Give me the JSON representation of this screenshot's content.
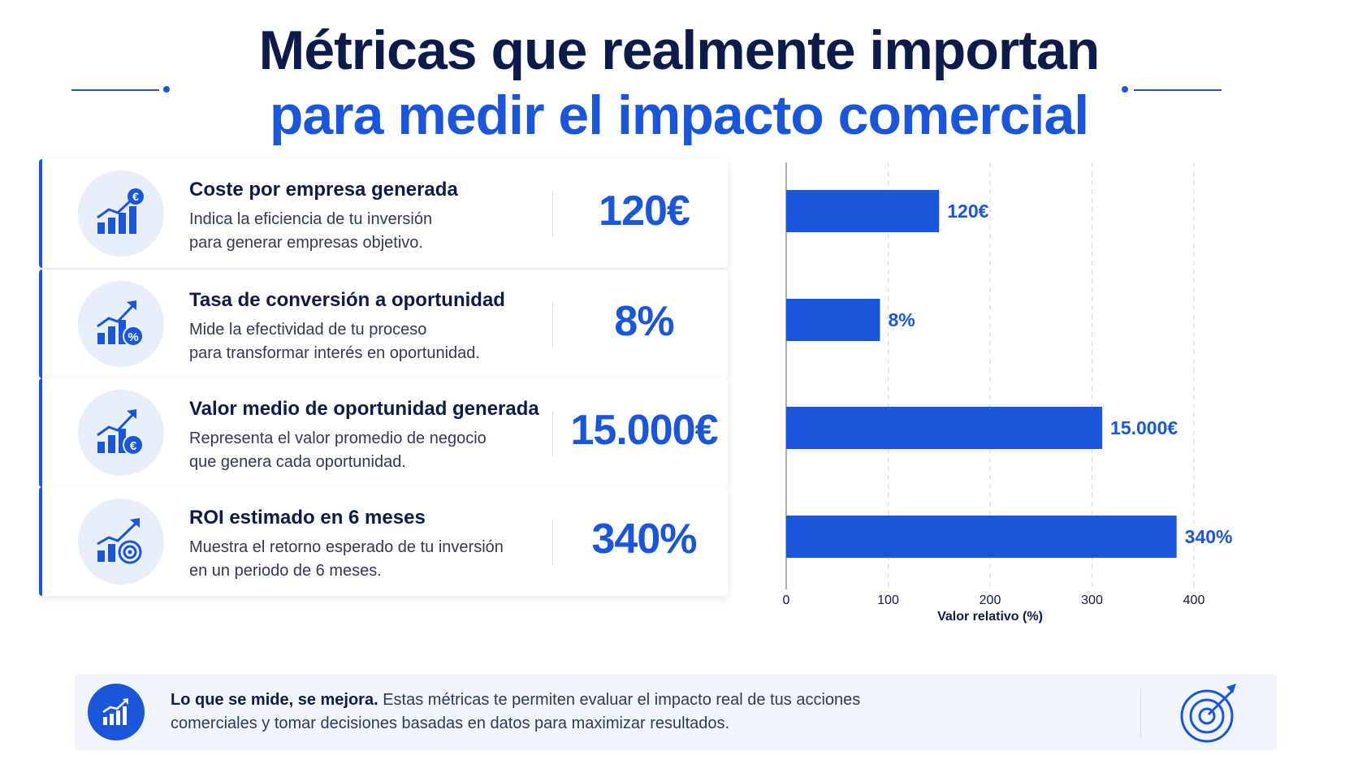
{
  "title": {
    "line1": "Métricas que realmente importan",
    "line2": "para medir el impacto comercial"
  },
  "colors": {
    "accent": "#1a56db",
    "navy": "#0d1b4c",
    "soft": "#e8effb"
  },
  "metrics": [
    {
      "name": "Coste por empresa generada",
      "desc1": "Indica la eficiencia de tu inversión",
      "desc2": "para generar empresas objetivo.",
      "value": "120€",
      "icon": "chart-euro-icon"
    },
    {
      "name": "Tasa de conversión a oportunidad",
      "desc1": "Mide la efectividad de tu proceso",
      "desc2": "para transformar interés en oportunidad.",
      "value": "8%",
      "icon": "chart-percent-icon"
    },
    {
      "name": "Valor medio de oportunidad generada",
      "desc1": "Representa el valor promedio de negocio",
      "desc2": "que genera cada oportunidad.",
      "value": "15.000€",
      "icon": "chart-euro-coin-icon"
    },
    {
      "name": "ROI estimado en 6 meses",
      "desc1": "Muestra el retorno esperado de tu inversión",
      "desc2": "en un periodo de 6 meses.",
      "value": "340%",
      "icon": "chart-target-icon"
    }
  ],
  "chart_data": {
    "type": "bar",
    "orientation": "horizontal",
    "categories": [
      "Coste por empresa generada",
      "Tasa de conversión a oportunidad",
      "Valor medio de oportunidad generada",
      "ROI estimado en 6 meses"
    ],
    "values": [
      150,
      92,
      310,
      383
    ],
    "data_labels": [
      "120€",
      "8%",
      "15.000€",
      "340%"
    ],
    "xlabel": "Valor relativo (%)",
    "xlim": [
      0,
      400
    ],
    "xticks": [
      0,
      100,
      200,
      300,
      400
    ],
    "grid": "vertical dashed",
    "bar_color": "#1a56db"
  },
  "footer": {
    "bold": "Lo que se mide, se mejora.",
    "text": " Estas métricas te permiten evaluar el impacto real de tus acciones comerciales y tomar decisiones basadas en datos para maximizar resultados."
  }
}
